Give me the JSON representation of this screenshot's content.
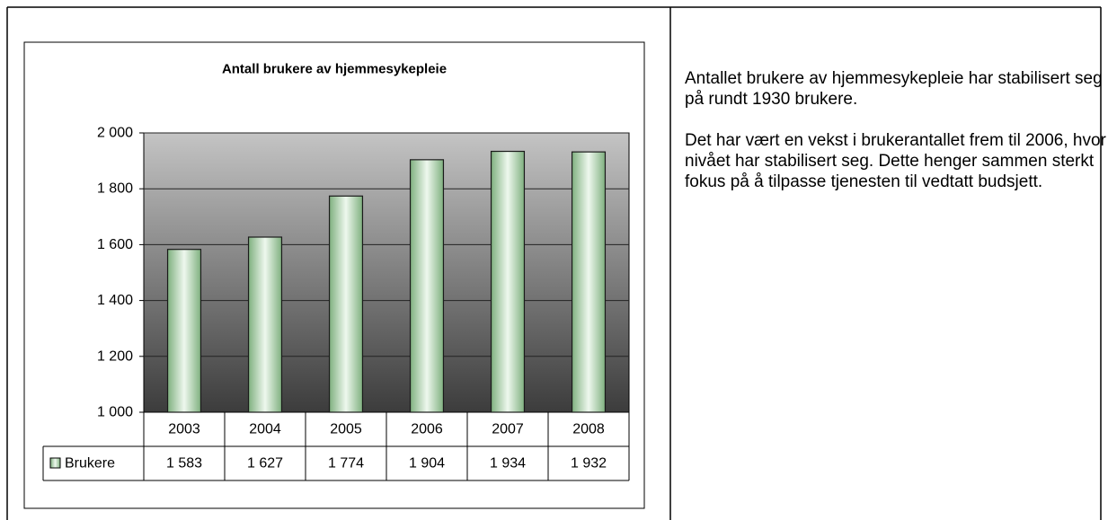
{
  "chart_data": {
    "type": "bar",
    "title": "Antall brukere av hjemmesykepleie",
    "categories": [
      "2003",
      "2004",
      "2005",
      "2006",
      "2007",
      "2008"
    ],
    "series": [
      {
        "name": "Brukere",
        "color": "#b8e0b8",
        "values": [
          1583,
          1627,
          1774,
          1904,
          1934,
          1932
        ],
        "value_labels": [
          "1 583",
          "1 627",
          "1 774",
          "1 904",
          "1 934",
          "1 932"
        ]
      }
    ],
    "ylim": [
      1000,
      2000
    ],
    "yticks": [
      {
        "value": 1000,
        "label": "1 000"
      },
      {
        "value": 1200,
        "label": "1 200"
      },
      {
        "value": 1400,
        "label": "1 400"
      },
      {
        "value": 1600,
        "label": "1 600"
      },
      {
        "value": 1800,
        "label": "1 800"
      },
      {
        "value": 2000,
        "label": "2 000"
      }
    ],
    "grid": true
  },
  "text": {
    "paragraphs": [
      "Antallet brukere av hjemmesykepleie har stabilisert seg på rundt 1930 brukere.",
      "Det har vært en vekst i brukerantallet frem til 2006, hvor nivået har stabilisert seg. Dette henger sammen sterkt fokus på å tilpasse tjenesten til vedtatt budsjett."
    ]
  }
}
